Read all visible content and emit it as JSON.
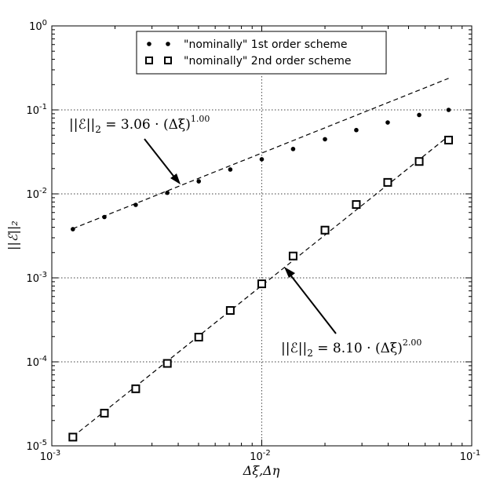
{
  "chart_data": {
    "type": "scatter",
    "xscale": "log",
    "yscale": "log",
    "xlim": [
      0.001,
      0.1
    ],
    "ylim": [
      1e-05,
      1
    ],
    "grid": true,
    "legend_placement": "top-center",
    "xlabel": "Δξ,Δη",
    "ylabel": "||ℰ||₂",
    "x_ticks": [
      {
        "value": 0.001,
        "base": "10",
        "exp": "-3"
      },
      {
        "value": 0.01,
        "base": "10",
        "exp": "-2"
      },
      {
        "value": 0.1,
        "base": "10",
        "exp": "-1"
      }
    ],
    "y_ticks": [
      {
        "value": 1e-05,
        "base": "10",
        "exp": "-5"
      },
      {
        "value": 0.0001,
        "base": "10",
        "exp": "-4"
      },
      {
        "value": 0.001,
        "base": "10",
        "exp": "-3"
      },
      {
        "value": 0.01,
        "base": "10",
        "exp": "-2"
      },
      {
        "value": 0.1,
        "base": "10",
        "exp": "-1"
      },
      {
        "value": 1,
        "base": "10",
        "exp": "0"
      }
    ],
    "series": [
      {
        "name": "\"nominally\" 1st order scheme",
        "marker": "dot",
        "x": [
          0.00126,
          0.00178,
          0.00251,
          0.00355,
          0.00501,
          0.00708,
          0.01,
          0.0141,
          0.02,
          0.0282,
          0.0398,
          0.0562,
          0.0776
        ],
        "y": [
          0.0038,
          0.0053,
          0.0074,
          0.0103,
          0.0141,
          0.0195,
          0.0258,
          0.0342,
          0.0447,
          0.0575,
          0.0708,
          0.087,
          0.1
        ]
      },
      {
        "name": "\"nominally\" 2nd order scheme",
        "marker": "square",
        "x": [
          0.00126,
          0.00178,
          0.00251,
          0.00355,
          0.00501,
          0.00708,
          0.01,
          0.0141,
          0.02,
          0.0282,
          0.0398,
          0.0562,
          0.0776
        ],
        "y": [
          1.27e-05,
          2.45e-05,
          4.78e-05,
          9.58e-05,
          0.000197,
          0.000409,
          0.000849,
          0.00182,
          0.0037,
          0.00747,
          0.0137,
          0.0243,
          0.0437
        ]
      }
    ],
    "fits": [
      {
        "coef": 3.06,
        "order": 1.0
      },
      {
        "coef": 8.1,
        "order": 2.0
      }
    ],
    "annotations": [
      {
        "prefix": "||ℰ||",
        "sub": "2",
        "middle": " = 3.06 · (Δξ)",
        "sup": "1.00"
      },
      {
        "prefix": "||ℰ||",
        "sub": "2",
        "middle": " = 8.10 · (Δξ)",
        "sup": "2.00"
      }
    ]
  }
}
